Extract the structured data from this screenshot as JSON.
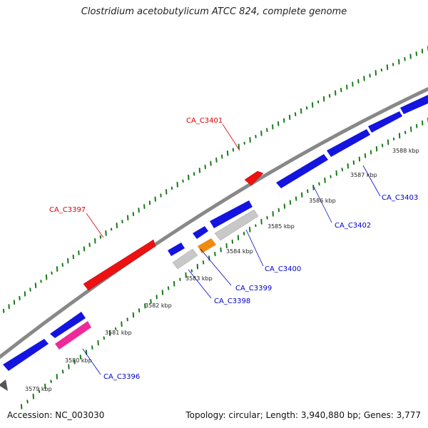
{
  "title": "Clostridium acetobutylicum ATCC 824, complete genome",
  "footer": {
    "accession": "Accession: NC_003030",
    "topology": "Topology: circular; Length: 3,940,880 bp; Genes: 3,777"
  },
  "ticks": [
    "3579 kbp",
    "3580 kbp",
    "3581 kbp",
    "3582 kbp",
    "3583 kbp",
    "3584 kbp",
    "3585 kbp",
    "3586 kbp",
    "3587 kbp",
    "3588 kbp"
  ],
  "genes": [
    {
      "id": "CA_C3397",
      "strand": "+",
      "color": "#ee1111"
    },
    {
      "id": "CA_C3401",
      "strand": "+",
      "color": "#ee1111"
    },
    {
      "id": "CA_C3396",
      "strand": "-",
      "color": "#ee2a9a"
    },
    {
      "id": "CA_C3398",
      "strand": "-",
      "color": "#c8c8c8"
    },
    {
      "id": "CA_C3399",
      "strand": "-",
      "color": "#f08a10"
    },
    {
      "id": "CA_C3400",
      "strand": "-",
      "color": "#c8c8c8"
    },
    {
      "id": "CA_C3402",
      "strand": "-",
      "color": "#1414e0"
    },
    {
      "id": "CA_C3403",
      "strand": "-",
      "color": "#1414e0"
    }
  ],
  "colors": {
    "backbone": "#888888",
    "gc_dots": "#1a7a1a",
    "forward_label": "#dd0000",
    "reverse_label": "#0000cc",
    "unlabeled_gene": "#1414e0",
    "hypothetical": "#555555"
  }
}
